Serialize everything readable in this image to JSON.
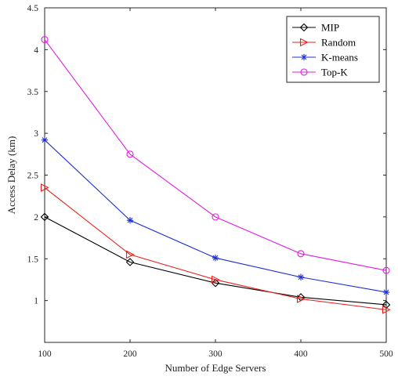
{
  "chart_data": {
    "type": "line",
    "title": "",
    "xlabel": "Number of Edge Servers",
    "ylabel": "Access Delay (km)",
    "x": [
      100,
      200,
      300,
      400,
      500
    ],
    "xlim": [
      100,
      500
    ],
    "ylim": [
      0.5,
      4.5
    ],
    "xticks": [
      "100",
      "200",
      "300",
      "400",
      "500"
    ],
    "yticks": [
      "1",
      "1.5",
      "2",
      "2.5",
      "3",
      "3.5",
      "4",
      "4.5"
    ],
    "grid": false,
    "legend_position": "top-right",
    "series": [
      {
        "name": "MIP",
        "values": [
          2.0,
          1.46,
          1.21,
          1.04,
          0.95
        ],
        "color": "#000000",
        "marker": "diamond"
      },
      {
        "name": "Random",
        "values": [
          2.35,
          1.55,
          1.25,
          1.02,
          0.89
        ],
        "color": "#e8211d",
        "marker": "triangle-right"
      },
      {
        "name": "K-means",
        "values": [
          2.92,
          1.96,
          1.51,
          1.28,
          1.1
        ],
        "color": "#1f2fd1",
        "marker": "asterisk"
      },
      {
        "name": "Top-K",
        "values": [
          4.12,
          2.75,
          2.0,
          1.56,
          1.36
        ],
        "color": "#e21de2",
        "marker": "circle"
      }
    ]
  }
}
